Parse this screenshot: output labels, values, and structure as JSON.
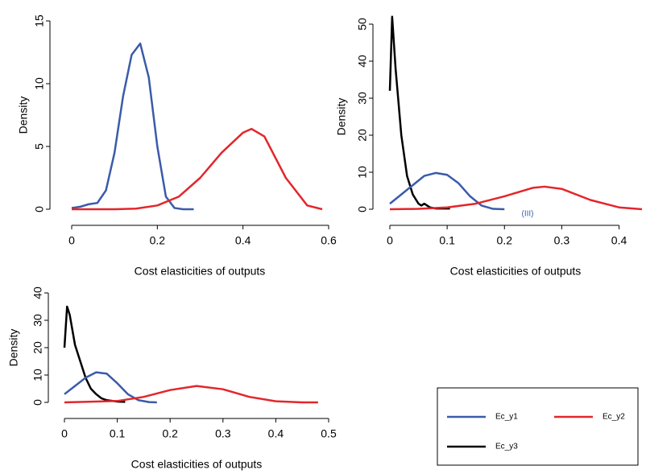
{
  "chart_data": [
    {
      "type": "line",
      "xlabel": "Cost elasticities of outputs",
      "ylabel": "Density",
      "xlim": [
        0,
        0.6
      ],
      "xticks": [
        0,
        0.2,
        0.4,
        0.6
      ],
      "ylim": [
        0,
        15
      ],
      "yticks": [
        0,
        5,
        10,
        15
      ],
      "series": [
        {
          "color": "#3b5ba9",
          "x": [
            0,
            0.02,
            0.04,
            0.06,
            0.08,
            0.1,
            0.12,
            0.14,
            0.16,
            0.18,
            0.2,
            0.22,
            0.24,
            0.26,
            0.285
          ],
          "values": [
            0.1,
            0.2,
            0.4,
            0.5,
            1.5,
            4.5,
            9,
            12.3,
            13.2,
            10.5,
            5,
            1,
            0.1,
            0,
            0
          ]
        },
        {
          "color": "#e3262b",
          "x": [
            0,
            0.05,
            0.1,
            0.15,
            0.2,
            0.25,
            0.3,
            0.35,
            0.4,
            0.42,
            0.45,
            0.5,
            0.55,
            0.585
          ],
          "values": [
            0,
            0,
            0,
            0.05,
            0.3,
            1,
            2.5,
            4.5,
            6.1,
            6.4,
            5.8,
            2.5,
            0.3,
            0
          ]
        }
      ]
    },
    {
      "type": "line",
      "xlabel": "Cost elasticities of outputs",
      "ylabel": "Density",
      "annotation": "(III)",
      "xlim": [
        0,
        0.44
      ],
      "xticks": [
        0,
        0.1,
        0.2,
        0.3,
        0.4
      ],
      "ylim": [
        0,
        50
      ],
      "yticks": [
        0,
        10,
        20,
        30,
        40,
        50
      ],
      "series": [
        {
          "color": "#000000",
          "x": [
            0,
            0.004,
            0.01,
            0.02,
            0.03,
            0.04,
            0.05,
            0.055,
            0.06,
            0.07,
            0.08,
            0.1,
            0.105
          ],
          "values": [
            32,
            52,
            38,
            20,
            9,
            4,
            1.5,
            1,
            1.5,
            0.5,
            0.2,
            0.2,
            0.2
          ]
        },
        {
          "color": "#3b5ba9",
          "x": [
            0,
            0.02,
            0.04,
            0.06,
            0.08,
            0.1,
            0.12,
            0.14,
            0.16,
            0.18,
            0.2
          ],
          "values": [
            1.5,
            4,
            6.5,
            9,
            9.8,
            9.3,
            7,
            3.5,
            1,
            0.1,
            0
          ]
        },
        {
          "color": "#e3262b",
          "x": [
            0,
            0.05,
            0.1,
            0.15,
            0.2,
            0.25,
            0.27,
            0.3,
            0.35,
            0.4,
            0.44
          ],
          "values": [
            0,
            0.1,
            0.5,
            1.5,
            3.5,
            5.8,
            6.1,
            5.5,
            2.5,
            0.5,
            0
          ]
        }
      ]
    },
    {
      "type": "line",
      "xlabel": "Cost elasticities of outputs",
      "ylabel": "Density",
      "xlim": [
        0,
        0.5
      ],
      "xticks": [
        0,
        0.1,
        0.2,
        0.3,
        0.4,
        0.5
      ],
      "ylim": [
        0,
        40
      ],
      "yticks": [
        0,
        10,
        20,
        30,
        40
      ],
      "series": [
        {
          "color": "#000000",
          "x": [
            0,
            0.005,
            0.01,
            0.02,
            0.03,
            0.04,
            0.05,
            0.06,
            0.07,
            0.08,
            0.1,
            0.115
          ],
          "values": [
            20,
            35,
            32,
            21,
            15,
            9,
            5,
            3,
            1.5,
            0.8,
            0.3,
            0.2
          ]
        },
        {
          "color": "#3b5ba9",
          "x": [
            0,
            0.02,
            0.04,
            0.06,
            0.08,
            0.1,
            0.12,
            0.14,
            0.16,
            0.175
          ],
          "values": [
            3,
            6,
            9,
            11,
            10.5,
            7,
            3,
            0.8,
            0.1,
            0
          ]
        },
        {
          "color": "#e3262b",
          "x": [
            0,
            0.1,
            0.15,
            0.2,
            0.25,
            0.3,
            0.35,
            0.4,
            0.45,
            0.48
          ],
          "values": [
            0,
            0.5,
            2,
            4.5,
            6,
            4.8,
            2,
            0.4,
            0,
            0
          ]
        }
      ]
    }
  ],
  "legend": {
    "entries": [
      {
        "name": "Ec_y1",
        "color": "#3b5ba9"
      },
      {
        "name": "Ec_y2",
        "color": "#e3262b"
      },
      {
        "name": "Ec_y3",
        "color": "#000000"
      }
    ]
  }
}
